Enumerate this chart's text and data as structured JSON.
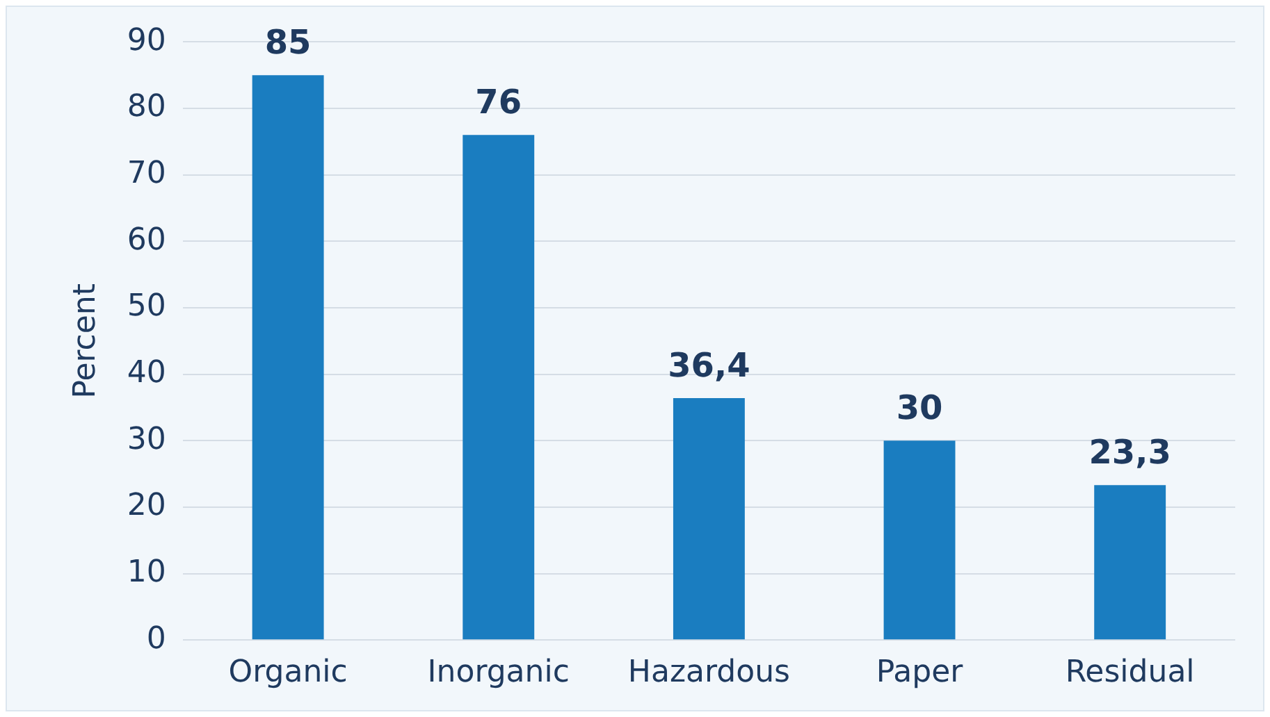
{
  "chart_data": {
    "type": "bar",
    "ylabel": "Percent",
    "categories": [
      "Organic",
      "Inorganic",
      "Hazardous",
      "Paper",
      "Residual"
    ],
    "values": [
      85,
      76,
      36.4,
      30,
      23.3
    ],
    "value_labels": [
      "85",
      "76",
      "36,4",
      "30",
      "23,3"
    ],
    "color": "#1a7dc0",
    "ylim": [
      0,
      90
    ],
    "yticks": [
      0,
      10,
      20,
      30,
      40,
      50,
      60,
      70,
      80,
      90
    ],
    "grid": "y",
    "legend": false
  }
}
